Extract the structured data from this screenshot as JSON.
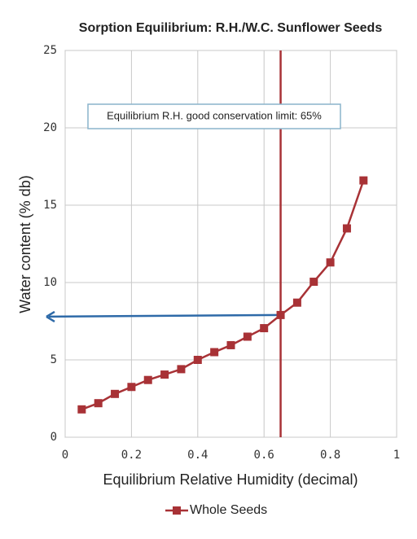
{
  "chart_data": {
    "type": "line",
    "title": "Sorption Equilibrium: R.H./W.C. Sunflower Seeds",
    "x_label": "Equilibrium Relative Humidity (decimal)",
    "y_label": "Water content (% db)",
    "x": [
      0.05,
      0.1,
      0.15,
      0.2,
      0.25,
      0.3,
      0.35,
      0.4,
      0.45,
      0.5,
      0.55,
      0.6,
      0.65,
      0.7,
      0.75,
      0.8,
      0.85,
      0.9
    ],
    "series": [
      {
        "name": "Whole Seeds",
        "color": "#a83236",
        "values": [
          1.8,
          2.2,
          2.8,
          3.25,
          3.7,
          4.05,
          4.4,
          5.0,
          5.5,
          5.95,
          6.5,
          7.05,
          7.9,
          8.7,
          10.05,
          11.3,
          13.5,
          16.6
        ]
      }
    ],
    "xlim": [
      0,
      1
    ],
    "xticks": [
      0,
      0.2,
      0.4,
      0.6,
      0.8,
      1
    ],
    "ylim": [
      0,
      25
    ],
    "yticks": [
      0,
      5,
      10,
      15,
      20,
      25
    ],
    "grid": true,
    "limit_line": {
      "x": 0.65,
      "color": "#a83236",
      "annotation": "Equilibrium R.H. good conservation limit: 65%",
      "annotation_value": 65
    },
    "arrow": {
      "x": 0.65,
      "y": 7.9,
      "color": "#2e6aa8"
    },
    "legend": "bottom"
  }
}
